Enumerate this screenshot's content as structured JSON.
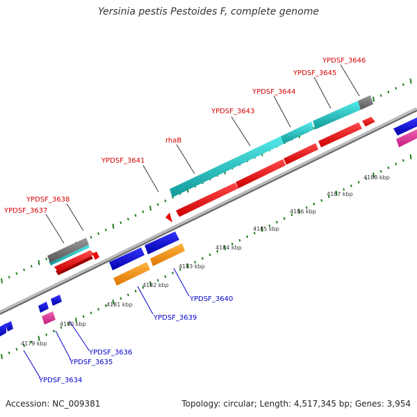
{
  "title": "Yersinia pestis Pestoides F, complete genome",
  "footer": {
    "accession": "Accession: NC_009381",
    "summary": "Topology: circular; Length: 4,517,345 bp; Genes: 3,954"
  },
  "colors": {
    "backbone": "#888888",
    "tick": "#1d7a1d",
    "cds_forward": "#ee0000",
    "cds_reverse": "#0000dd",
    "rna": "#22cccc",
    "gene_gray": "#777777",
    "orange": "#ff9900",
    "pink": "#e0379b",
    "label_forward": "#d40000",
    "label_reverse": "#0000cc"
  },
  "scale_labels": [
    {
      "text": "4179 kbp",
      "kbp": 4179
    },
    {
      "text": "4180 kbp",
      "kbp": 4180
    },
    {
      "text": "4181 kbp",
      "kbp": 4181
    },
    {
      "text": "4182 kbp",
      "kbp": 4182
    },
    {
      "text": "4183 kbp",
      "kbp": 4183
    },
    {
      "text": "4184 kbp",
      "kbp": 4184
    },
    {
      "text": "4185 kbp",
      "kbp": 4185
    },
    {
      "text": "4186 kbp",
      "kbp": 4186
    },
    {
      "text": "4187 kbp",
      "kbp": 4187
    },
    {
      "text": "4188 kbp",
      "kbp": 4188
    }
  ],
  "forward_labels": [
    {
      "text": "YPDSF_3637"
    },
    {
      "text": "YPDSF_3638"
    },
    {
      "text": "YPDSF_3641"
    },
    {
      "text": "rhaB"
    },
    {
      "text": "YPDSF_3643"
    },
    {
      "text": "YPDSF_3644"
    },
    {
      "text": "YPDSF_3645"
    },
    {
      "text": "YPDSF_3646"
    }
  ],
  "reverse_labels": [
    {
      "text": "YPDSF_3634"
    },
    {
      "text": "YPDSF_3635"
    },
    {
      "text": "YPDSF_3636"
    },
    {
      "text": "YPDSF_3639"
    },
    {
      "text": "YPDSF_3640"
    }
  ]
}
